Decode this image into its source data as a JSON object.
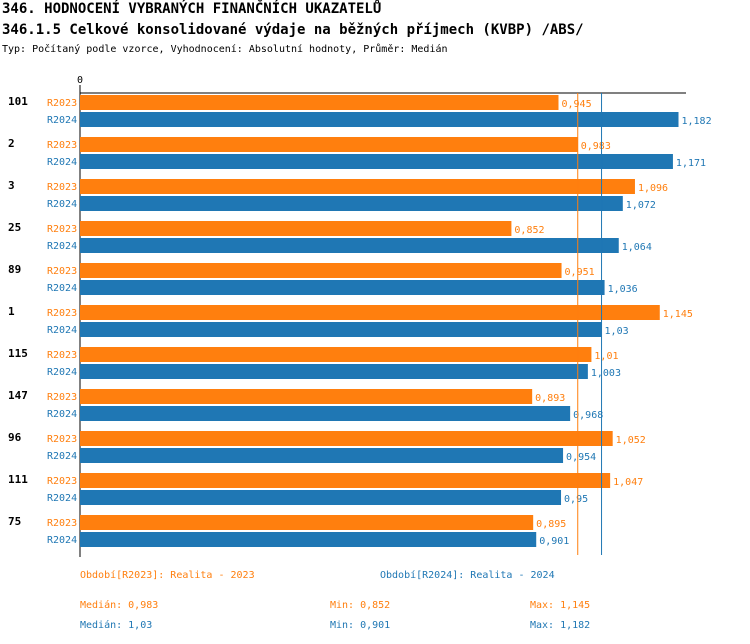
{
  "header": {
    "title": "346. HODNOCENÍ VYBRANÝCH FINANČNÍCH UKAZATELŮ",
    "subtitle": "346.1.5 Celkové konsolidované výdaje na běžných příjmech (KVBP) /ABS/",
    "description": "Typ: Počítaný podle vzorce, Vyhodnocení: Absolutní hodnoty, Průměr: Medián"
  },
  "chart_data": {
    "type": "bar",
    "orientation": "horizontal",
    "x_tick_label": "0",
    "xlim": [
      0,
      1.25
    ],
    "grid": false,
    "categories": [
      "101",
      "2",
      "3",
      "25",
      "89",
      "1",
      "115",
      "147",
      "96",
      "111",
      "75"
    ],
    "series": [
      {
        "name": "R2023",
        "color": "#ff7f0e",
        "values": [
          0.945,
          0.983,
          1.096,
          0.852,
          0.951,
          1.145,
          1.01,
          0.893,
          1.052,
          1.047,
          0.895
        ],
        "value_labels": [
          "0,945",
          "0,983",
          "1,096",
          "0,852",
          "0,951",
          "1,145",
          "1,01",
          "0,893",
          "1,052",
          "1,047",
          "0,895"
        ],
        "median": 0.983
      },
      {
        "name": "R2024",
        "color": "#1f77b4",
        "values": [
          1.182,
          1.171,
          1.072,
          1.064,
          1.036,
          1.03,
          1.003,
          0.968,
          0.954,
          0.95,
          0.901
        ],
        "value_labels": [
          "1,182",
          "1,171",
          "1,072",
          "1,064",
          "1,036",
          "1,03",
          "1,003",
          "0,968",
          "0,954",
          "0,95",
          "0,901"
        ],
        "median": 1.03
      }
    ]
  },
  "footer": {
    "legend_2023": "Období[R2023]: Realita - 2023",
    "legend_2024": "Období[R2024]: Realita - 2024",
    "median_2023": "Medián: 0,983",
    "min_2023": "Min: 0,852",
    "max_2023": "Max: 1,145",
    "median_2024": "Medián: 1,03",
    "min_2024": "Min: 0,901",
    "max_2024": "Max: 1,182"
  }
}
